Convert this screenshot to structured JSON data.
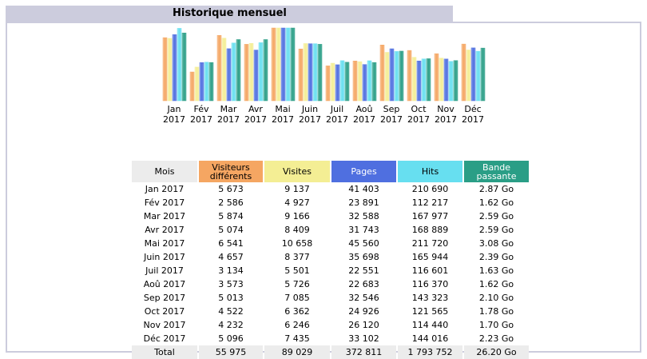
{
  "panel_title": "Historique mensuel",
  "colors": {
    "visitors": "#f5a662",
    "visits": "#f4ee94",
    "pages": "#4f6fe0",
    "hits": "#67dff0",
    "bandwidth": "#2a9e86",
    "mois_header": "#ececec",
    "title_bg": "#ccccdd"
  },
  "chart_data": {
    "type": "bar",
    "categories": [
      "Jan 2017",
      "Fév 2017",
      "Mar 2017",
      "Avr 2017",
      "Mai 2017",
      "Juin 2017",
      "Juil 2017",
      "Aoû 2017",
      "Sep 2017",
      "Oct 2017",
      "Nov 2017",
      "Déc 2017"
    ],
    "category_lines": [
      [
        "Jan",
        "2017"
      ],
      [
        "Fév",
        "2017"
      ],
      [
        "Mar",
        "2017"
      ],
      [
        "Avr",
        "2017"
      ],
      [
        "Mai",
        "2017"
      ],
      [
        "Juin",
        "2017"
      ],
      [
        "Juil",
        "2017"
      ],
      [
        "Aoû",
        "2017"
      ],
      [
        "Sep",
        "2017"
      ],
      [
        "Oct",
        "2017"
      ],
      [
        "Nov",
        "2017"
      ],
      [
        "Déc",
        "2017"
      ]
    ],
    "series": [
      {
        "name": "Visiteurs différents",
        "values": [
          5673,
          2586,
          5874,
          5074,
          6541,
          4657,
          3134,
          3573,
          5013,
          4522,
          4232,
          5096
        ]
      },
      {
        "name": "Visites",
        "values": [
          9137,
          4927,
          9166,
          8409,
          10658,
          8377,
          5501,
          5726,
          7085,
          6362,
          6246,
          7435
        ]
      },
      {
        "name": "Pages",
        "values": [
          41403,
          23891,
          32588,
          31743,
          45560,
          35698,
          22551,
          22683,
          32546,
          24926,
          26120,
          33102
        ]
      },
      {
        "name": "Hits",
        "values": [
          210690,
          112217,
          167977,
          168889,
          211720,
          165944,
          116601,
          116370,
          143323,
          121565,
          114440,
          144016
        ]
      },
      {
        "name": "Bande passante",
        "values": [
          2.87,
          1.62,
          2.59,
          2.59,
          3.08,
          2.39,
          1.63,
          1.62,
          2.1,
          1.78,
          1.7,
          2.23
        ]
      }
    ]
  },
  "table": {
    "headers": [
      "Mois",
      "Visiteurs différents",
      "Visites",
      "Pages",
      "Hits",
      "Bande passante"
    ],
    "rows": [
      [
        "Jan 2017",
        "5 673",
        "9 137",
        "41 403",
        "210 690",
        "2.87 Go"
      ],
      [
        "Fév 2017",
        "2 586",
        "4 927",
        "23 891",
        "112 217",
        "1.62 Go"
      ],
      [
        "Mar 2017",
        "5 874",
        "9 166",
        "32 588",
        "167 977",
        "2.59 Go"
      ],
      [
        "Avr 2017",
        "5 074",
        "8 409",
        "31 743",
        "168 889",
        "2.59 Go"
      ],
      [
        "Mai 2017",
        "6 541",
        "10 658",
        "45 560",
        "211 720",
        "3.08 Go"
      ],
      [
        "Juin 2017",
        "4 657",
        "8 377",
        "35 698",
        "165 944",
        "2.39 Go"
      ],
      [
        "Juil 2017",
        "3 134",
        "5 501",
        "22 551",
        "116 601",
        "1.63 Go"
      ],
      [
        "Aoû 2017",
        "3 573",
        "5 726",
        "22 683",
        "116 370",
        "1.62 Go"
      ],
      [
        "Sep 2017",
        "5 013",
        "7 085",
        "32 546",
        "143 323",
        "2.10 Go"
      ],
      [
        "Oct 2017",
        "4 522",
        "6 362",
        "24 926",
        "121 565",
        "1.78 Go"
      ],
      [
        "Nov 2017",
        "4 232",
        "6 246",
        "26 120",
        "114 440",
        "1.70 Go"
      ],
      [
        "Déc 2017",
        "5 096",
        "7 435",
        "33 102",
        "144 016",
        "2.23 Go"
      ]
    ],
    "total": [
      "Total",
      "55 975",
      "89 029",
      "372 811",
      "1 793 752",
      "26.20 Go"
    ]
  }
}
